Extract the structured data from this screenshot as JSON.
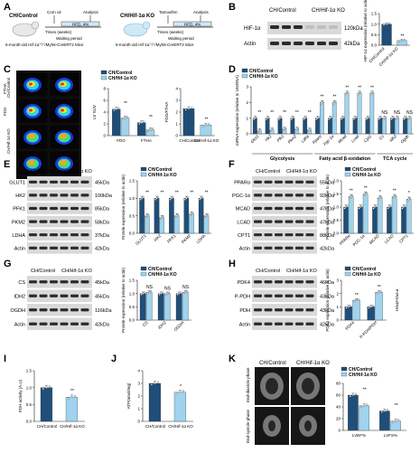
{
  "colors": {
    "control": "#1f4e79",
    "ko": "#9fd3ee",
    "axis": "#222",
    "blot_bg": "#d9d9d9",
    "band": "#2b2b2b"
  },
  "panels": {
    "A": {
      "letter": "A",
      "mouse1": "CH/Control",
      "mouse2": "CH/Hif-1α KO",
      "diet1": "Corn oil",
      "diet2": "Tamoxifen",
      "analysis": "Analysis",
      "waiting": "Waiting period",
      "hfd": "HFD, 4%",
      "times": "Times (weeks)",
      "weeks": [
        "0",
        "1",
        "2",
        "3",
        "4",
        "5"
      ],
      "genotype": "6-month-old Hif-1α⁺/⁺/Myh6-CreERT2 Mice"
    },
    "B": {
      "letter": "B",
      "header1": "CH/Control",
      "header2": "CH/Hif-1α KO",
      "row1": "HIF-1α",
      "row2": "Actin",
      "kda1": "120kDa",
      "kda2": "42kDa",
      "ylabel": "HIF-1α expression (relative to actin)",
      "sig": "**",
      "x": [
        "CH/Control",
        "CH/Hif-1α KO"
      ]
    },
    "C": {
      "letter": "C",
      "legend": [
        "CH/Control",
        "CH/Hif-1α KO"
      ],
      "rows": [
        "CH/Control",
        "CH/Hif-1α KO"
      ],
      "cols": [
        "FTHA",
        "FDG"
      ],
      "ylabel1": "LV SUV",
      "ylabel2": "FDG/FTHA",
      "x1": [
        "FDG",
        "FTHA"
      ],
      "x2": [
        "CH/Control",
        "CH/Hif-1α KO"
      ],
      "sig": "**"
    },
    "D": {
      "letter": "D",
      "legend": [
        "CH/Control",
        "CH/Hif-1α KO"
      ],
      "ylabel": "mRNA expression (relative to 18sRNA)",
      "groups": [
        "Glycolysis",
        "Fatty acid β-oxidation",
        "TCA cycle"
      ],
      "genes": [
        "Glut1",
        "Hk2",
        "Pfk1",
        "Pkm2",
        "Ldha",
        "Pparα",
        "Pgc-1α",
        "Mcad",
        "Lcad",
        "Cpt1",
        "Cs",
        "Idh2",
        "Ogdh"
      ],
      "sig": [
        "**",
        "**",
        "**",
        "**",
        "**",
        "**",
        "**",
        "**",
        "**",
        "**",
        "NS",
        "NS",
        "NS"
      ]
    },
    "E": {
      "letter": "E",
      "header1": "CH/Control",
      "header2": "CH/Hif-1α KO",
      "rows": [
        "GLUT1",
        "HK2",
        "PFK1",
        "PKM2",
        "LDHA",
        "Actin"
      ],
      "kda": [
        "45kDa",
        "100kDa",
        "85kDa",
        "58kDa",
        "37kDa",
        "42kDa"
      ],
      "legend": [
        "CH/Control",
        "CH/Hif-1α KO"
      ],
      "ylabel": "Protein expression (relative to actin)",
      "x": [
        "GLUT1",
        "HK2",
        "PFK1",
        "PKM2",
        "LDHA"
      ],
      "sig": "**"
    },
    "F": {
      "letter": "F",
      "header1": "CH/Control",
      "header2": "CH/Hif-1α KO",
      "rows": [
        "PPARα",
        "PGC-1α",
        "MCAD",
        "LCAD",
        "CPT1",
        "Actin"
      ],
      "kda": [
        "55kDa",
        "92kDa",
        "47kDa",
        "47kDa",
        "88kDa",
        "42kDa"
      ],
      "legend": [
        "CH/Control",
        "CH/Hif-1α KO"
      ],
      "ylabel": "Protein expression (relative to actin)",
      "x": [
        "PPARα",
        "PGC-1α",
        "MCAD",
        "LCAD",
        "CPT1"
      ],
      "sig": [
        "**",
        "**",
        "*",
        "**",
        "*"
      ]
    },
    "G": {
      "letter": "G",
      "header1": "CH/Control",
      "header2": "CH/Hif-1α KO",
      "rows": [
        "CS",
        "IDH2",
        "OGDH",
        "Actin"
      ],
      "kda": [
        "45kDa",
        "45kDa",
        "116kDa",
        "42kDa"
      ],
      "legend": [
        "CH/Control",
        "CH/Hif-1α KO"
      ],
      "ylabel": "Protein expression (relative to actin)",
      "x": [
        "CS",
        "IDH2",
        "OGDH"
      ],
      "sig": [
        "NS",
        "NS",
        "NS"
      ]
    },
    "H": {
      "letter": "H",
      "header1": "CH/Control",
      "header2": "CH/Hif-1α KO",
      "rows": [
        "PDK4",
        "P-PDH",
        "PDH",
        "Actin"
      ],
      "kda": [
        "46kDa",
        "43kDa",
        "43kDa",
        "42kDa"
      ],
      "legend": [
        "CH/Control",
        "CH/Hif-1α KO"
      ],
      "ylabel1": "PDK4 expression (relative to actin)",
      "ylabel2": "P-PDH/PDH",
      "x": [
        "PDK4",
        "P-PDH/PDH"
      ],
      "sig": [
        "**",
        "**"
      ]
    },
    "I": {
      "letter": "I",
      "ylabel": "PDH activity (A.U)",
      "x": [
        "CH/Control",
        "CH/Hif-1α KO"
      ],
      "sig": "**",
      "ticks": [
        "0.0",
        "0.5",
        "1.0",
        "1.5"
      ]
    },
    "J": {
      "letter": "J",
      "ylabel": "ATP(nmol/mg)",
      "x": [
        "CH/Control",
        "CH/Hif-1α KO"
      ],
      "sig": "*",
      "ticks": [
        "0",
        "1",
        "2",
        "3",
        "4"
      ]
    },
    "K": {
      "letter": "K",
      "header1": "CH/Control",
      "header2": "CH/Hif-1α KO",
      "row1": "End-diastole phase",
      "row2": "End-systole phase",
      "legend": [
        "LVEF%",
        "LVFS%"
      ],
      "x": [
        "LVEF%",
        "LVFS%"
      ],
      "sig": [
        "**",
        "**"
      ],
      "ticks": [
        "0",
        "20",
        "40",
        "60",
        "80"
      ]
    }
  },
  "chart_data": [
    {
      "panel": "B",
      "type": "bar",
      "categories": [
        "CH/Control",
        "CH/Hif-1α KO"
      ],
      "values": [
        1.0,
        0.22
      ],
      "ylim": [
        0,
        1.5
      ]
    },
    {
      "panel": "C1",
      "type": "bar",
      "categories": [
        "FDG",
        "FTHA"
      ],
      "series": [
        {
          "name": "CH/Control",
          "values": [
            4.5,
            2.2
          ]
        },
        {
          "name": "CH/Hif-1α KO",
          "values": [
            3.0,
            1.0
          ]
        }
      ],
      "ylim": [
        0,
        8
      ]
    },
    {
      "panel": "C2",
      "type": "bar",
      "categories": [
        "CH/Control",
        "CH/Hif-1α KO"
      ],
      "values": [
        2.3,
        0.9
      ],
      "ylim": [
        0,
        4
      ]
    },
    {
      "panel": "D",
      "type": "bar",
      "categories": [
        "Glut1",
        "Hk2",
        "Pfk1",
        "Pkm2",
        "Ldha",
        "Pparα",
        "Pgc-1α",
        "Mcad",
        "Lcad",
        "Cpt1",
        "Cs",
        "Idh2",
        "Ogdh"
      ],
      "series": [
        {
          "name": "CH/Control",
          "values": [
            1,
            1,
            1,
            1,
            1,
            1,
            1,
            1,
            1,
            1,
            1,
            1,
            1
          ]
        },
        {
          "name": "CH/Hif-1α KO",
          "values": [
            0.2,
            0.25,
            0.3,
            0.3,
            0.25,
            2.0,
            2.0,
            2.6,
            2.6,
            2.6,
            1.0,
            1.0,
            1.0
          ]
        }
      ],
      "ylim": [
        0,
        3
      ]
    },
    {
      "panel": "E",
      "type": "bar",
      "categories": [
        "GLUT1",
        "HK2",
        "PFK1",
        "PKM2",
        "LDHA"
      ],
      "series": [
        {
          "name": "CH/Control",
          "values": [
            1,
            1,
            1,
            1,
            1
          ]
        },
        {
          "name": "CH/Hif-1α KO",
          "values": [
            0.5,
            0.45,
            0.5,
            0.55,
            0.5
          ]
        }
      ],
      "ylim": [
        0,
        1.5
      ]
    },
    {
      "panel": "F",
      "type": "bar",
      "categories": [
        "PPARα",
        "PGC-1α",
        "MCAD",
        "LCAD",
        "CPT1"
      ],
      "series": [
        {
          "name": "CH/Control",
          "values": [
            1,
            1,
            1,
            1,
            1
          ]
        },
        {
          "name": "CH/Hif-1α KO",
          "values": [
            1.4,
            1.5,
            1.35,
            1.4,
            1.3
          ]
        }
      ],
      "ylim": [
        0,
        2
      ]
    },
    {
      "panel": "G",
      "type": "bar",
      "categories": [
        "CS",
        "IDH2",
        "OGDH"
      ],
      "series": [
        {
          "name": "CH/Control",
          "values": [
            1,
            1,
            1
          ]
        },
        {
          "name": "CH/Hif-1α KO",
          "values": [
            1.05,
            1.0,
            1.05
          ]
        }
      ],
      "ylim": [
        0,
        1.5
      ]
    },
    {
      "panel": "H",
      "type": "bar",
      "categories": [
        "PDK4",
        "P-PDH/PDH"
      ],
      "series": [
        {
          "name": "CH/Control",
          "values": [
            1.0,
            1.0
          ]
        },
        {
          "name": "CH/Hif-1α KO",
          "values": [
            1.5,
            2.1
          ]
        }
      ],
      "ylim": [
        0,
        3
      ]
    },
    {
      "panel": "I",
      "type": "bar",
      "categories": [
        "CH/Control",
        "CH/Hif-1α KO"
      ],
      "values": [
        1.0,
        0.72
      ],
      "ylim": [
        0,
        1.5
      ]
    },
    {
      "panel": "J",
      "type": "bar",
      "categories": [
        "CH/Control",
        "CH/Hif-1α KO"
      ],
      "values": [
        3.0,
        2.3
      ],
      "ylim": [
        0,
        4
      ]
    },
    {
      "panel": "K",
      "type": "bar",
      "categories": [
        "LVEF%",
        "LVFS%"
      ],
      "series": [
        {
          "name": "CH/Control",
          "values": [
            60,
            33
          ]
        },
        {
          "name": "CH/Hif-1α KO",
          "values": [
            42,
            16
          ]
        }
      ],
      "ylim": [
        0,
        80
      ]
    }
  ]
}
